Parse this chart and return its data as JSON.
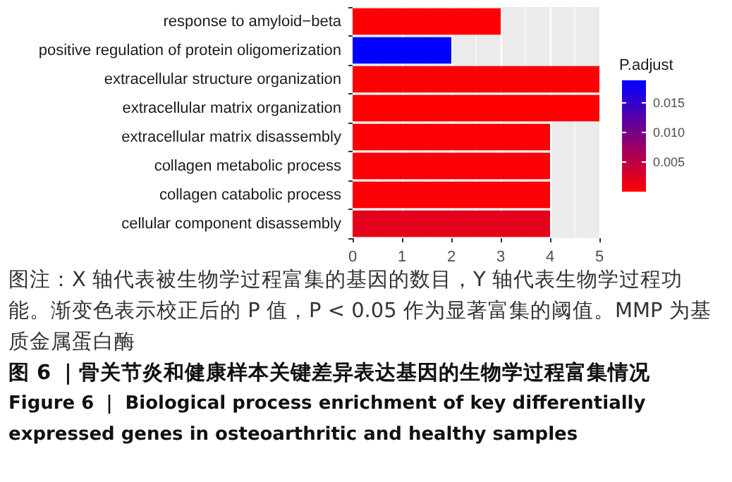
{
  "chart_data": {
    "type": "bar",
    "orientation": "horizontal",
    "categories": [
      "response to amyloid−beta",
      "positive regulation of protein oligomerization",
      "extracellular structure organization",
      "extracellular matrix organization",
      "extracellular matrix disassembly",
      "collagen metabolic process",
      "collagen catabolic process",
      "cellular component disassembly"
    ],
    "values": [
      3,
      2,
      5,
      5,
      4,
      4,
      4,
      4
    ],
    "cvalues": [
      0.0002,
      0.0188,
      0.0001,
      0.0001,
      0.0003,
      0.0003,
      0.0003,
      0.002
    ],
    "clabel": "P.adjust",
    "clim": [
      0,
      0.0188
    ],
    "cticks": [
      0.005,
      {
        "value": 0.01,
        "label": "0.010"
      },
      0.015
    ],
    "xlim": [
      0,
      5
    ],
    "xticks": [
      0,
      1,
      2,
      3,
      4,
      5
    ],
    "grid": "x",
    "annotations": [
      "图注：X 轴代表被生物学过程富集的基因的数目，Y 轴代表生物学过程功能。渐变色表示校正后的 P 值，P < 0.05 作为显著富集的阈值。MMP 为基质金属蛋白酶",
      "图 6 ｜骨关节炎和健康样本关键差异表达基因的生物学过程富集情况",
      "Figure 6 ｜ Biological process enrichment of key differentially expressed genes in osteoarthritic and healthy samples"
    ]
  }
}
